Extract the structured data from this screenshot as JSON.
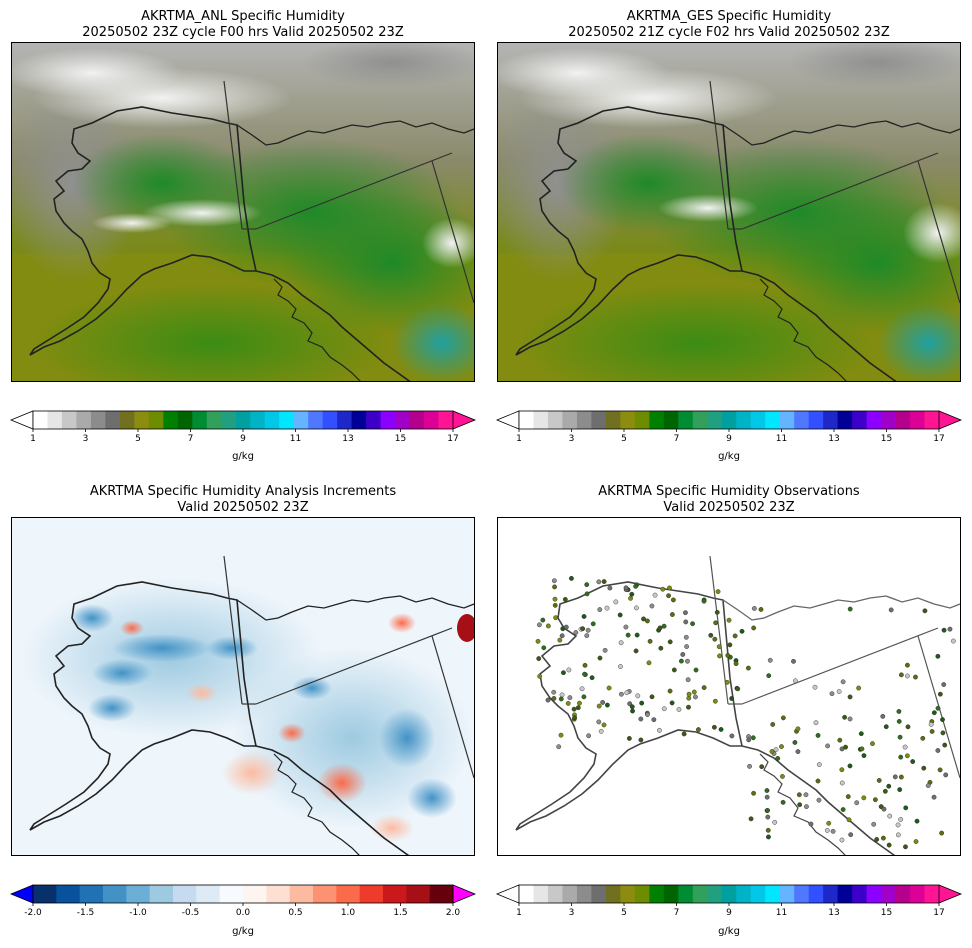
{
  "panels": [
    {
      "title_line1": "AKRTMA_ANL Specific Humidity",
      "title_line2": "20250502 23Z cycle F00 hrs Valid 20250502 23Z"
    },
    {
      "title_line1": "AKRTMA_GES Specific Humidity",
      "title_line2": "20250502 21Z cycle F02 hrs Valid 20250502 23Z"
    },
    {
      "title_line1": "AKRTMA Specific Humidity Analysis Increments",
      "title_line2": "Valid 20250502 23Z"
    },
    {
      "title_line1": "AKRTMA Specific Humidity Observations",
      "title_line2": "Valid 20250502 23Z"
    }
  ],
  "colorbars": {
    "humidity": {
      "unit": "g/kg",
      "ticks": [
        "1",
        "3",
        "5",
        "7",
        "9",
        "11",
        "13",
        "15",
        "17"
      ],
      "colors": [
        "#ffffff",
        "#e6e6e6",
        "#c8c8c8",
        "#aaaaaa",
        "#8c8c8c",
        "#6e6e6e",
        "#707020",
        "#8c8c10",
        "#6e8c00",
        "#008000",
        "#006400",
        "#008c32",
        "#32a05a",
        "#20a080",
        "#00a0a0",
        "#00b4c8",
        "#00c8e6",
        "#00e6ff",
        "#64b4ff",
        "#5078ff",
        "#3250ff",
        "#1e28c8",
        "#000096",
        "#3c00c8",
        "#8c00ff",
        "#a000c8",
        "#b4008c",
        "#dc0096",
        "#ff1493"
      ],
      "under_color": "#ffffff",
      "over_color": "#ff1493"
    },
    "increments": {
      "unit": "g/kg",
      "ticks": [
        "-2.0",
        "-1.5",
        "-1.0",
        "-0.5",
        "0.0",
        "0.5",
        "1.0",
        "1.5",
        "2.0"
      ],
      "colors": [
        "#08306b",
        "#08519c",
        "#2171b5",
        "#4292c6",
        "#6baed6",
        "#9ecae1",
        "#c6dbef",
        "#deebf7",
        "#f7fbff",
        "#fff5f0",
        "#fee0d2",
        "#fcbba1",
        "#fc9272",
        "#fb6a4a",
        "#ef3b2c",
        "#cb181d",
        "#a50f15",
        "#67000d"
      ],
      "under_color": "#0000ff",
      "over_color": "#ff00ff"
    }
  }
}
